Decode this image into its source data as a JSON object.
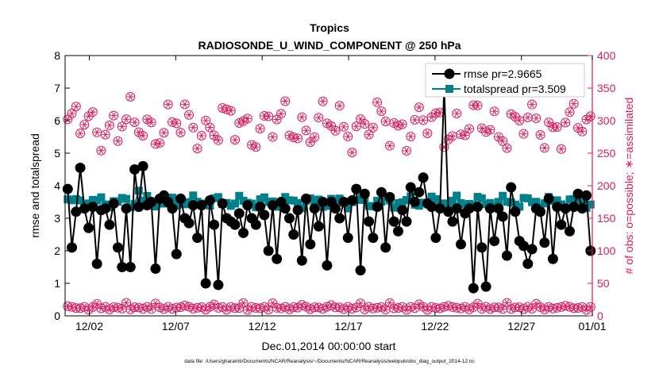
{
  "chart_data": {
    "type": "line",
    "title": "Tropics",
    "subtitle": "RADIOSONDE_U_WIND_COMPONENT @ 250 hPa",
    "xlabel": "Dec.01,2014 00:00:00 start",
    "ylabel_left": "rmse and totalspread",
    "ylabel_right": "# of obs: o=possible; ∗=assimilated",
    "footnote": "data file: /Users/gharamti/Documents/NCAR/Reanalysis/~/Documents/NCAR/Reanalysis/webpub/obs_diag_output_2014-12.nc",
    "xlim": [
      0.6,
      31.1
    ],
    "ylim_left": [
      0,
      8
    ],
    "ylim_right": [
      0,
      400
    ],
    "xticks": [
      {
        "x": 2,
        "label": "12/02"
      },
      {
        "x": 7,
        "label": "12/07"
      },
      {
        "x": 12,
        "label": "12/12"
      },
      {
        "x": 17,
        "label": "12/17"
      },
      {
        "x": 22,
        "label": "12/22"
      },
      {
        "x": 27,
        "label": "12/27"
      },
      {
        "x": 32,
        "label": "01/01"
      }
    ],
    "yticks_left": [
      0,
      1,
      2,
      3,
      4,
      5,
      6,
      7,
      8
    ],
    "yticks_right": [
      0,
      50,
      100,
      150,
      200,
      250,
      300,
      350,
      400
    ],
    "colors": {
      "rmse": "#000000",
      "spread": "#00808a",
      "obs": "#d81b60",
      "axis": "#000000"
    },
    "legend": {
      "placement": "top-right",
      "entries": [
        "rmse pr=2.9665",
        "totalspread pr=3.509"
      ]
    },
    "rmse": [
      3.9,
      2.1,
      3.2,
      4.55,
      3.3,
      2.7,
      3.35,
      1.6,
      3.25,
      3.3,
      2.8,
      3.45,
      2.1,
      1.5,
      3.3,
      1.5,
      4.5,
      3.35,
      4.6,
      3.4,
      3.5,
      1.45,
      3.6,
      3.7,
      3.5,
      3.3,
      1.9,
      3.6,
      3.0,
      2.85,
      3.4,
      2.4,
      3.4,
      1.0,
      3.55,
      2.8,
      0.95,
      3.45,
      3.0,
      2.9,
      2.8,
      3.15,
      2.55,
      3.4,
      3.0,
      2.8,
      3.35,
      3.1,
      2.0,
      3.4,
      1.75,
      3.5,
      3.3,
      3.0,
      2.5,
      3.25,
      1.7,
      3.6,
      2.2,
      3.3,
      2.75,
      3.5,
      1.55,
      3.5,
      3.3,
      3.0,
      3.5,
      2.4,
      3.55,
      3.9,
      1.4,
      3.75,
      2.9,
      2.4,
      3.35,
      3.8,
      2.1,
      3.65,
      2.9,
      2.6,
      3.25,
      2.9,
      3.95,
      3.5,
      3.8,
      4.25,
      3.45,
      3.35,
      2.4,
      3.3,
      7.0,
      3.2,
      2.9,
      3.3,
      2.2,
      3.15,
      3.3,
      0.85,
      3.35,
      2.1,
      0.9,
      3.3,
      2.3,
      3.3,
      3.05,
      1.85,
      3.95,
      3.2,
      2.3,
      2.15,
      1.6,
      2.05,
      3.3,
      3.2,
      2.25,
      3.6,
      1.75,
      3.35,
      2.8,
      3.3,
      2.6,
      3.35,
      3.75,
      3.3,
      3.7,
      2.0
    ]
  }
}
